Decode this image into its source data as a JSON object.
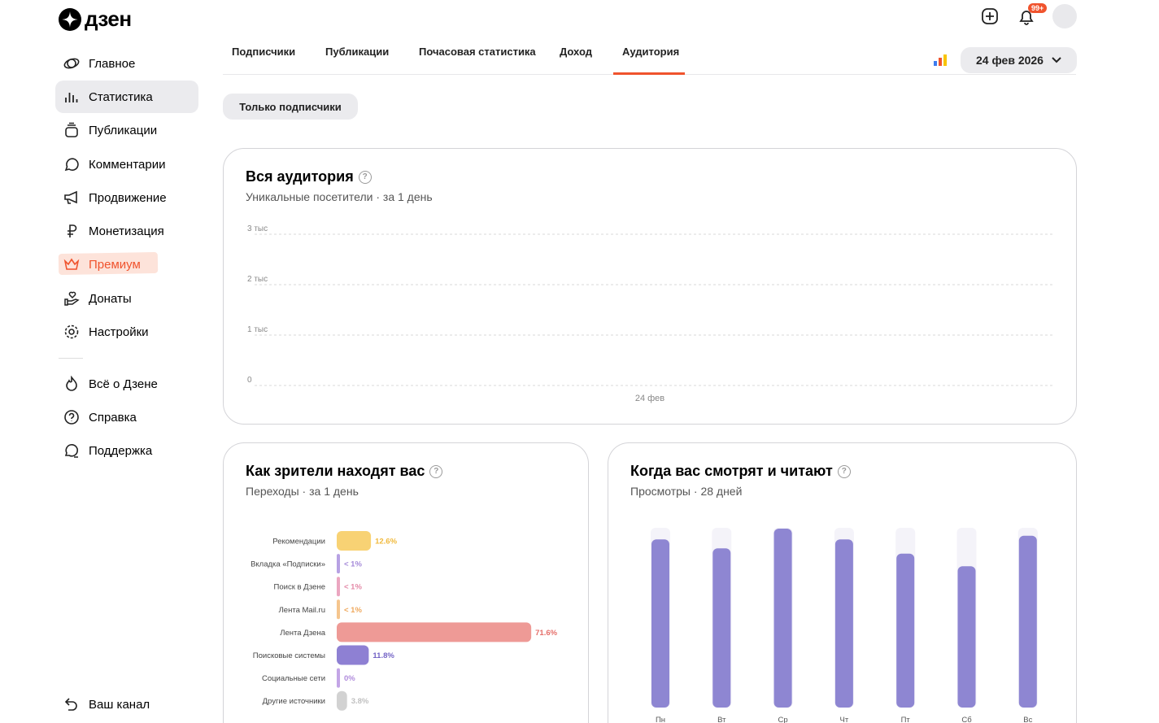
{
  "header": {
    "logo": "дзен",
    "notification_badge": "99+"
  },
  "nav": {
    "items": [
      "Главное",
      "Статистика",
      "Публикации",
      "Комментарии",
      "Продвижение",
      "Монетизация",
      "Премиум",
      "Донаты",
      "Настройки"
    ],
    "secondary": [
      "Всё о Дзене",
      "Справка",
      "Поддержка"
    ],
    "channel": "Ваш канал"
  },
  "tabs": [
    "Подписчики",
    "Публикации",
    "Почасовая статистика",
    "Доход",
    "Аудитория"
  ],
  "date_picker": "24 фев 2026",
  "filter": "Только подписчики",
  "chart_data": [
    {
      "type": "line",
      "title": "Вся аудитория",
      "subtitle": "Уникальные посетители · за 1 день",
      "x": [
        "24 фев"
      ],
      "ylim": [
        0,
        3000
      ],
      "yticks": [
        0,
        {
          "value": 1000,
          "label": "1 тыс"
        },
        {
          "value": 2000,
          "label": "2 тыс"
        },
        {
          "value": 3000,
          "label": "3 тыс"
        }
      ],
      "grid": true
    },
    {
      "type": "bar",
      "orientation": "horizontal",
      "title": "Как зрители находят вас",
      "subtitle": "Переходы · за 1 день",
      "categories": [
        "Рекомендации",
        "Вкладка «Подписки»",
        "Поиск в Дзене",
        "Лента Mail.ru",
        "Лента Дзена",
        "Поисковые системы",
        "Социальные сети",
        "Другие источники"
      ],
      "values": [
        12.6,
        0.5,
        0.5,
        0.5,
        71.6,
        11.8,
        0,
        3.8
      ],
      "value_labels": [
        "12.6%",
        "< 1%",
        "< 1%",
        "< 1%",
        "71.6%",
        "11.8%",
        "0%",
        "3.8%"
      ],
      "colors": [
        "#f8d274",
        "#b7a1e3",
        "#eba6c0",
        "#f5c58e",
        "#ee9a96",
        "#8e80d3",
        "#c3a5e6",
        "#d2d2d2"
      ],
      "label_colors": [
        "#f0b93c",
        "#a58ad9",
        "#e48aa8",
        "#efa95e",
        "#e56f6a",
        "#7464c6",
        "#b08bdc",
        "#c0c0c0"
      ]
    },
    {
      "type": "bar",
      "orientation": "vertical",
      "title": "Когда вас смотрят и читают",
      "subtitle": "Просмотры · 28 дней",
      "categories": [
        "Пн",
        "Вт",
        "Ср",
        "Чт",
        "Пт",
        "Сб",
        "Вс"
      ],
      "values": [
        94,
        89,
        100,
        94,
        86,
        79,
        96
      ],
      "ylim": [
        0,
        100
      ],
      "color": "#8e86d2"
    }
  ]
}
